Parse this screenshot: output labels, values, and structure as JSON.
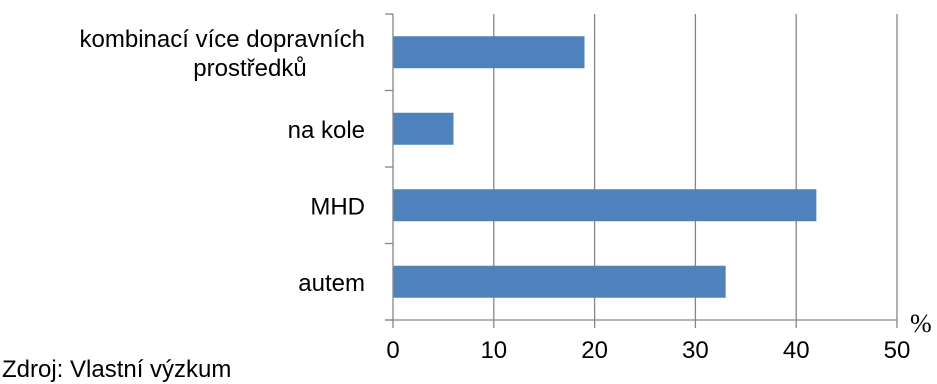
{
  "chart_data": {
    "type": "bar",
    "orientation": "horizontal",
    "categories": [
      "autem",
      "MHD",
      "na kole",
      "kombinací více dopravních prostředků"
    ],
    "category_label_lines": [
      [
        "autem"
      ],
      [
        "MHD"
      ],
      [
        "na kole"
      ],
      [
        "kombinací více dopravních",
        "prostředků"
      ]
    ],
    "values": [
      33,
      42,
      6,
      19
    ],
    "xlim": [
      0,
      50
    ],
    "xticks": [
      0,
      10,
      20,
      30,
      40,
      50
    ],
    "xunit": "%",
    "grid": true,
    "bar_color": "#4F81BD",
    "grid_color": "#868686"
  },
  "source": "Zdroj: Vlastní výzkum"
}
